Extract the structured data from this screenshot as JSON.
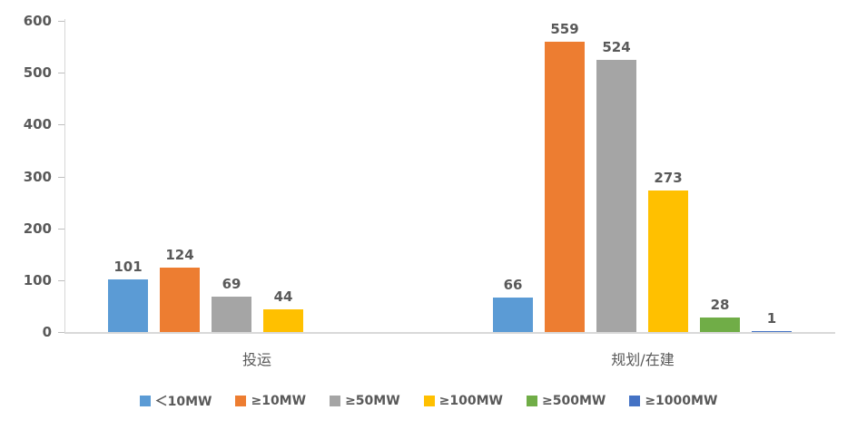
{
  "chart_data": {
    "type": "bar",
    "title": "",
    "xlabel": "",
    "ylabel": "",
    "categories": [
      "投运",
      "规划/在建"
    ],
    "series": [
      {
        "name": "＜10MW",
        "color": "#5B9BD5",
        "values": [
          101,
          66
        ]
      },
      {
        "name": "≥10MW",
        "color": "#ED7D31",
        "values": [
          124,
          559
        ]
      },
      {
        "name": "≥50MW",
        "color": "#A5A5A5",
        "values": [
          69,
          524
        ]
      },
      {
        "name": "≥100MW",
        "color": "#FFC000",
        "values": [
          44,
          273
        ]
      },
      {
        "name": "≥500MW",
        "color": "#70AD47",
        "values": [
          null,
          28
        ]
      },
      {
        "name": "≥1000MW",
        "color": "#4472C4",
        "values": [
          null,
          1
        ]
      }
    ],
    "ylim": [
      0,
      600
    ],
    "yticks": [
      0,
      100,
      200,
      300,
      400,
      500,
      600
    ],
    "grid": false,
    "legend_position": "bottom",
    "data_labels": true,
    "axis_color": "#d9d9d9",
    "label_color": "#595959"
  }
}
